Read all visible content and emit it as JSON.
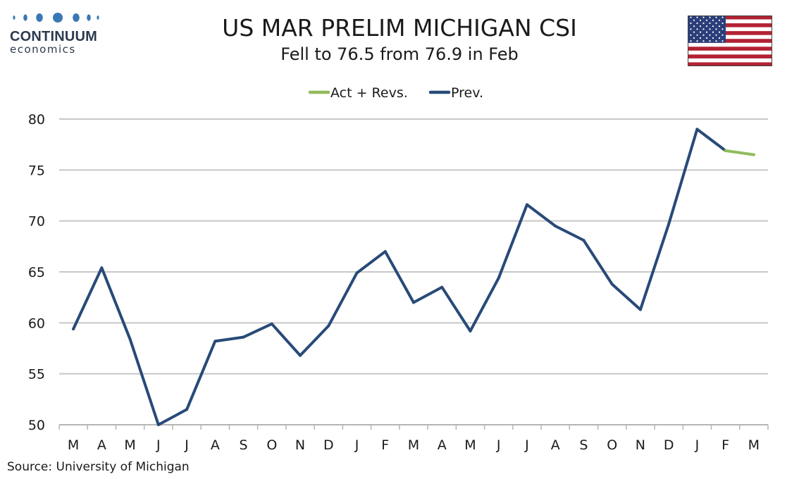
{
  "logo": {
    "name": "CONTINUUM",
    "sub": "economics"
  },
  "flag_icon": "us-flag-icon",
  "colors": {
    "prev": "#284a78",
    "act": "#92bb5c",
    "grid": "#c8c8c8",
    "logo": "#2b3a4f"
  },
  "source": "Source: University of Michigan",
  "chart_data": {
    "type": "line",
    "title": "US MAR PRELIM MICHIGAN CSI",
    "subtitle": "Fell to 76.5 from 76.9 in Feb",
    "categories": [
      "M",
      "A",
      "M",
      "J",
      "J",
      "A",
      "S",
      "O",
      "N",
      "D",
      "J",
      "F",
      "M",
      "A",
      "M",
      "J",
      "J",
      "A",
      "S",
      "O",
      "N",
      "D",
      "J",
      "F",
      "M"
    ],
    "yticks": [
      "50",
      "55",
      "60",
      "65",
      "70",
      "75",
      "80"
    ],
    "ylim": [
      50,
      80
    ],
    "grid": true,
    "legend_position": "top-center",
    "series": [
      {
        "name": "Act + Revs.",
        "values": [
          null,
          null,
          null,
          null,
          null,
          null,
          null,
          null,
          null,
          null,
          null,
          null,
          null,
          null,
          null,
          null,
          null,
          null,
          null,
          null,
          null,
          null,
          null,
          76.9,
          76.5
        ]
      },
      {
        "name": "Prev.",
        "values": [
          59.4,
          65.4,
          58.4,
          50.0,
          51.5,
          58.2,
          58.6,
          59.9,
          56.8,
          59.7,
          64.9,
          67.0,
          62.0,
          63.5,
          59.2,
          64.4,
          71.6,
          69.5,
          68.1,
          63.8,
          61.3,
          69.7,
          79.0,
          76.9,
          null
        ]
      }
    ]
  }
}
